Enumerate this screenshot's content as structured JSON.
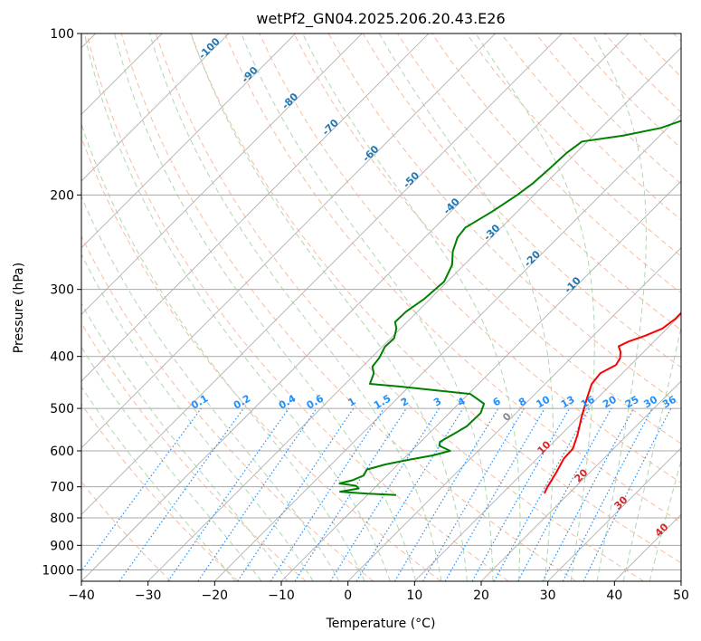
{
  "chart_data": {
    "type": "line",
    "title": "wetPf2_GN04.2025.206.20.43.E26",
    "xlabel": "Temperature (°C)",
    "ylabel": "Pressure (hPa)",
    "xlim": [
      -40,
      50
    ],
    "ylim": [
      1050,
      100
    ],
    "y_scale": "log",
    "skew": 45,
    "grid": true,
    "x_ticks": [
      -40,
      -30,
      -20,
      -10,
      0,
      10,
      20,
      30,
      40,
      50
    ],
    "y_ticks": [
      100,
      200,
      300,
      400,
      500,
      600,
      700,
      800,
      900,
      1000
    ],
    "isotherm_labels": [
      "-100",
      "-90",
      "-80",
      "-70",
      "-60",
      "-50",
      "-40",
      "-30",
      "-20",
      "-10"
    ],
    "isotherm_label_values": [
      -100,
      -90,
      -80,
      -70,
      -60,
      -50,
      -40,
      -30,
      -20,
      -10
    ],
    "mixing_ratio_labels": [
      "0.1",
      "0.2",
      "0.4",
      "0.6",
      "1",
      "1.5",
      "2",
      "3",
      "4",
      "6",
      "8",
      "10",
      "13",
      "16",
      "20",
      "25",
      "30",
      "36"
    ],
    "mixing_ratio_values": [
      0.1,
      0.2,
      0.4,
      0.6,
      1,
      1.5,
      2,
      3,
      4,
      6,
      8,
      10,
      13,
      16,
      20,
      25,
      30,
      36
    ],
    "surface_labels": [
      "0",
      "10",
      "20",
      "30",
      "40"
    ],
    "surface_label_values": [
      0,
      10,
      20,
      30,
      40
    ],
    "colors": {
      "temperature": "#ff0000",
      "dewpoint": "#008000",
      "isotherm_label": "#1f77b4",
      "mixing_ratio": "#1e90ff",
      "dry_adiabat": "#f4a582",
      "moist_adiabat": "#9ccc9c",
      "isotherm": "#a8a8a8",
      "surface_label": "#d62728"
    },
    "series": [
      {
        "name": "",
        "color": "#ff0000",
        "points": [
          [
            16.3,
            720
          ],
          [
            15.8,
            700
          ],
          [
            15.0,
            660
          ],
          [
            14.0,
            620
          ],
          [
            13.9,
            595
          ],
          [
            12.5,
            560
          ],
          [
            10.5,
            520
          ],
          [
            8.5,
            480
          ],
          [
            7.0,
            450
          ],
          [
            6.7,
            430
          ],
          [
            7.8,
            415
          ],
          [
            7.4,
            403
          ],
          [
            6.5,
            392
          ],
          [
            5.4,
            383
          ],
          [
            6.2,
            375
          ],
          [
            7.8,
            366
          ],
          [
            9.3,
            355
          ],
          [
            9.8,
            340
          ],
          [
            9.7,
            320
          ],
          [
            9.2,
            305
          ],
          [
            9.4,
            293
          ],
          [
            10.2,
            280
          ],
          [
            11.1,
            262
          ],
          [
            11.5,
            246
          ],
          [
            11.0,
            235
          ],
          [
            9.7,
            222
          ],
          [
            8.2,
            207
          ],
          [
            6.9,
            190
          ],
          [
            6.7,
            176
          ],
          [
            6.9,
            162
          ],
          [
            7.4,
            148
          ],
          [
            8.0,
            136
          ],
          [
            9.1,
            124
          ],
          [
            10.2,
            116
          ],
          [
            12.4,
            109
          ],
          [
            15.8,
            100
          ]
        ]
      },
      {
        "name": "",
        "color": "#008000",
        "points": [
          [
            -5.7,
            725
          ],
          [
            -10.2,
            721
          ],
          [
            -14.6,
            715
          ],
          [
            -12.3,
            705
          ],
          [
            -13.1,
            697
          ],
          [
            -15.9,
            690
          ],
          [
            -14.4,
            680
          ],
          [
            -13.5,
            667
          ],
          [
            -13.9,
            650
          ],
          [
            -11.9,
            636
          ],
          [
            -9.5,
            625
          ],
          [
            -6.2,
            612
          ],
          [
            -4.2,
            600
          ],
          [
            -6.6,
            587
          ],
          [
            -7.1,
            577
          ],
          [
            -6.3,
            560
          ],
          [
            -5.4,
            540
          ],
          [
            -5.3,
            510
          ],
          [
            -6.2,
            490
          ],
          [
            -9.7,
            470
          ],
          [
            -21.5,
            455
          ],
          [
            -26.3,
            450
          ],
          [
            -27.3,
            430
          ],
          [
            -28.5,
            418
          ],
          [
            -28.8,
            402
          ],
          [
            -29.6,
            384
          ],
          [
            -29.5,
            370
          ],
          [
            -30.6,
            355
          ],
          [
            -31.8,
            345
          ],
          [
            -31.7,
            330
          ],
          [
            -30.9,
            313
          ],
          [
            -30.5,
            290
          ],
          [
            -31.8,
            270
          ],
          [
            -33.7,
            255
          ],
          [
            -35.1,
            240
          ],
          [
            -35.4,
            230
          ],
          [
            -33.8,
            215
          ],
          [
            -32.5,
            200
          ],
          [
            -31.9,
            190
          ],
          [
            -31.6,
            178
          ],
          [
            -31.4,
            167
          ],
          [
            -30.8,
            159
          ],
          [
            -25.5,
            155
          ],
          [
            -21.0,
            150
          ],
          [
            -18.8,
            145
          ],
          [
            -18.2,
            140
          ],
          [
            -16.8,
            133
          ],
          [
            -16.4,
            126
          ],
          [
            -15.3,
            118
          ],
          [
            -15.1,
            110
          ],
          [
            -14.4,
            104
          ],
          [
            -14.2,
            100
          ]
        ]
      }
    ]
  }
}
